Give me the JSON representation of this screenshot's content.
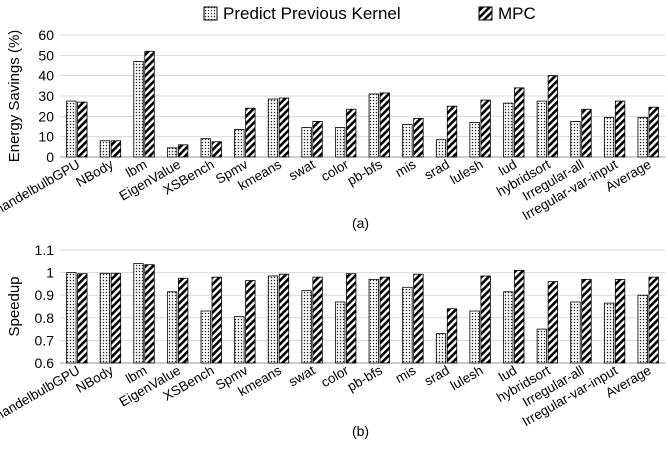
{
  "legend": {
    "series_a": "Predict Previous Kernel",
    "series_b": "MPC"
  },
  "chart_data": [
    {
      "type": "bar",
      "caption": "(a)",
      "ylabel": "Energy Savings (%)",
      "ylim": [
        0,
        60
      ],
      "yticks": [
        "0",
        "10",
        "20",
        "30",
        "40",
        "50",
        "60"
      ],
      "grid": "horizontal",
      "categories": [
        "mandelbulbGPU",
        "NBody",
        "lbm",
        "EigenValue",
        "XSBench",
        "Spmv",
        "kmeans",
        "swat",
        "color",
        "pb-bfs",
        "mis",
        "srad",
        "lulesh",
        "lud",
        "hybridsort",
        "Irregular-all",
        "Irregular-var-input",
        "Average"
      ],
      "series": [
        {
          "name": "Predict Previous Kernel",
          "values": [
            27.5,
            8,
            47,
            4.5,
            9,
            13.5,
            28.5,
            14.5,
            14.5,
            31,
            16,
            8.5,
            17,
            26.5,
            27.5,
            17.5,
            19.5,
            19.5
          ]
        },
        {
          "name": "MPC",
          "values": [
            27,
            8,
            52,
            6,
            7.5,
            24,
            29,
            17.5,
            23.5,
            31.5,
            19,
            25,
            28,
            34,
            40,
            23.5,
            27.5,
            24.5
          ]
        }
      ]
    },
    {
      "type": "bar",
      "caption": "(b)",
      "ylabel": "Speedup",
      "ylim": [
        0.6,
        1.1
      ],
      "yticks": [
        "0.6",
        "0.7",
        "0.8",
        "0.9",
        "1",
        "1.1"
      ],
      "grid": "horizontal",
      "categories": [
        "mandelbulbGPU",
        "NBody",
        "lbm",
        "EigenValue",
        "XSBench",
        "Spmv",
        "kmeans",
        "swat",
        "color",
        "pb-bfs",
        "mis",
        "srad",
        "lulesh",
        "lud",
        "hybridsort",
        "Irregular-all",
        "Irregular-var-input",
        "Average"
      ],
      "series": [
        {
          "name": "Predict Previous Kernel",
          "values": [
            1.0,
            0.997,
            1.04,
            0.915,
            0.83,
            0.805,
            0.985,
            0.92,
            0.87,
            0.97,
            0.935,
            0.73,
            0.83,
            0.915,
            0.75,
            0.87,
            0.865,
            0.9
          ]
        },
        {
          "name": "MPC",
          "values": [
            0.995,
            0.997,
            1.035,
            0.975,
            0.98,
            0.965,
            0.993,
            0.98,
            0.995,
            0.98,
            0.993,
            0.84,
            0.985,
            1.01,
            0.96,
            0.97,
            0.97,
            0.98
          ]
        }
      ]
    }
  ]
}
